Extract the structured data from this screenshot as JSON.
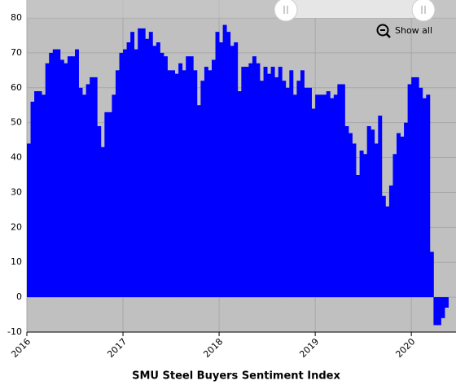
{
  "chart_data": {
    "type": "step-area",
    "title": "SMU Steel Buyers Sentiment Index",
    "categories": [
      "2016",
      null,
      null,
      null,
      null,
      null,
      null,
      null,
      null,
      null,
      null,
      null,
      null,
      null,
      null,
      null,
      null,
      null,
      null,
      null,
      null,
      null,
      null,
      null,
      null,
      null,
      "2017",
      null,
      null,
      null,
      null,
      null,
      null,
      null,
      null,
      null,
      null,
      null,
      null,
      null,
      null,
      null,
      null,
      null,
      null,
      null,
      null,
      null,
      null,
      null,
      null,
      null,
      "2018",
      null,
      null,
      null,
      null,
      null,
      null,
      null,
      null,
      null,
      null,
      null,
      null,
      null,
      null,
      null,
      null,
      null,
      null,
      null,
      null,
      null,
      null,
      null,
      null,
      null,
      "2019",
      null,
      null,
      null,
      null,
      null,
      null,
      null,
      null,
      null,
      null,
      null,
      null,
      null,
      null,
      null,
      null,
      null,
      null,
      null,
      null,
      null,
      null,
      null,
      null,
      null,
      "2020",
      null,
      null,
      null,
      null,
      null,
      null,
      null,
      null,
      null
    ],
    "values": [
      44,
      56,
      59,
      59,
      58,
      67,
      70,
      71,
      71,
      68,
      67,
      69,
      69,
      71,
      60,
      58,
      61,
      63,
      63,
      49,
      43,
      53,
      53,
      58,
      65,
      70,
      71,
      73,
      76,
      71,
      77,
      77,
      74,
      76,
      72,
      73,
      70,
      69,
      65,
      65,
      64,
      67,
      65,
      69,
      69,
      65,
      55,
      62,
      66,
      65,
      68,
      76,
      73,
      78,
      76,
      72,
      73,
      59,
      66,
      66,
      67,
      69,
      67,
      62,
      66,
      64,
      66,
      63,
      66,
      62,
      60,
      65,
      58,
      62,
      65,
      60,
      60,
      54,
      58,
      58,
      58,
      59,
      57,
      58,
      61,
      61,
      49,
      47,
      44,
      35,
      42,
      41,
      49,
      48,
      44,
      52,
      29,
      26,
      32,
      41,
      47,
      46,
      50,
      61,
      63,
      63,
      60,
      57,
      58,
      13,
      -8,
      -8,
      -6,
      -3
    ],
    "color": "#0000ff",
    "ylim": [
      -10,
      80
    ],
    "yticks": [
      -10,
      0,
      10,
      20,
      30,
      40,
      50,
      60,
      70,
      80
    ],
    "grid": true
  },
  "ui": {
    "show_all": "Show all"
  }
}
